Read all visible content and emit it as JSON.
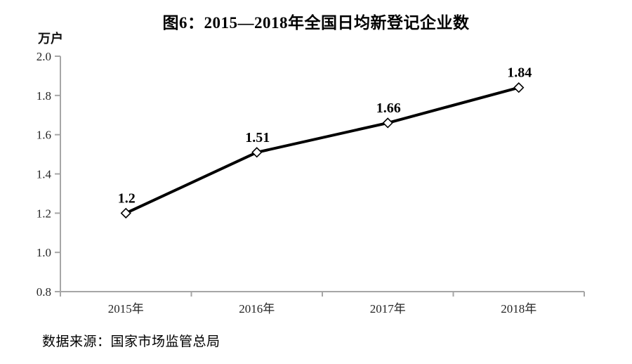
{
  "title": "图6：2015—2018年全国日均新登记企业数",
  "unit_label": "万户",
  "source": "数据来源：国家市场监管总局",
  "colors": {
    "line": "#000000",
    "axis": "#a6a6a6",
    "marker_fill": "#ffffff",
    "tick_text": "#262626"
  },
  "chart_data": {
    "type": "line",
    "title": "图6：2015—2018年全国日均新登记企业数",
    "ylabel": "万户",
    "xlabel": "",
    "categories": [
      "2015年",
      "2016年",
      "2017年",
      "2018年"
    ],
    "values": [
      1.2,
      1.51,
      1.66,
      1.84
    ],
    "data_labels": [
      "1.2",
      "1.51",
      "1.66",
      "1.84"
    ],
    "ylim": [
      0.8,
      2.0
    ],
    "ytick_step": 0.2,
    "ytick_labels": [
      "0.8",
      "1.0",
      "1.2",
      "1.4",
      "1.6",
      "1.8",
      "2.0"
    ],
    "grid": false,
    "legend": "none",
    "marker": "diamond",
    "line_width": 4,
    "source": "数据来源：国家市场监管总局"
  }
}
